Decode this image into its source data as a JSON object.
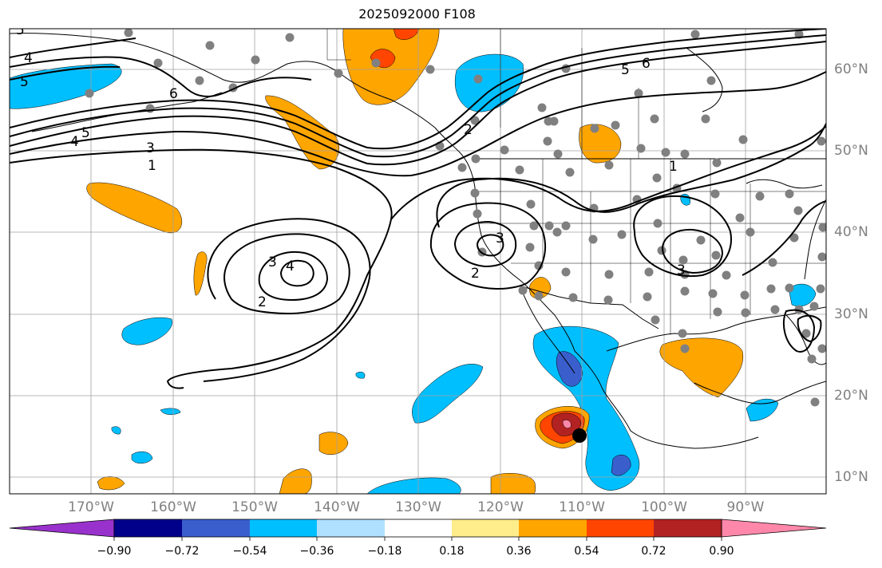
{
  "title": "2025092000 F108",
  "lon_labels": [
    "170°W",
    "160°W",
    "150°W",
    "140°W",
    "130°W",
    "120°W",
    "110°W",
    "100°W",
    "90°W"
  ],
  "lat_labels": [
    "60°N",
    "50°N",
    "40°N",
    "30°N",
    "20°N",
    "10°N"
  ],
  "contour_labels": [
    "1",
    "2",
    "3",
    "4",
    "5",
    "6"
  ],
  "colorbar": {
    "ticks": [
      "−0.90",
      "−0.72",
      "−0.54",
      "−0.36",
      "−0.18",
      "0.18",
      "0.36",
      "0.54",
      "0.72",
      "0.90"
    ],
    "colors": [
      "#9932cc",
      "#00008b",
      "#3a5fcd",
      "#00bfff",
      "#b0e0ff",
      "#ffffff",
      "#ffec8b",
      "#ffa500",
      "#ff4500",
      "#b22222",
      "#ff88aa"
    ]
  },
  "colors": {
    "positive_low": "#ffa500",
    "positive_mid": "#ff4500",
    "positive_high": "#b22222",
    "positive_max": "#ff88aa",
    "negative_low": "#00bfff",
    "negative_mid": "#3a5fcd",
    "station_dot": "#808080",
    "marker": "#000000"
  }
}
